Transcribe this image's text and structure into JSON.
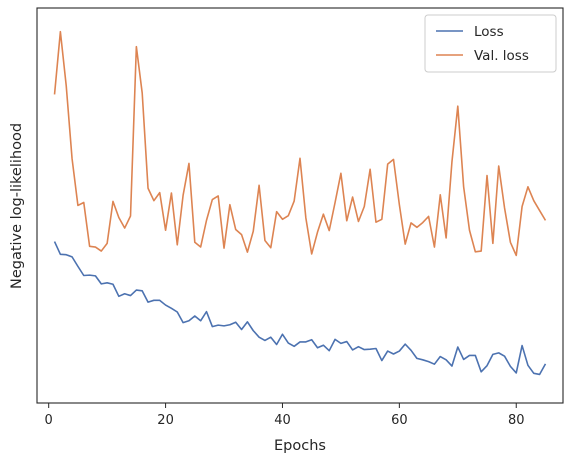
{
  "chart_data": {
    "type": "line",
    "title": "",
    "xlabel": "Epochs",
    "ylabel": "Negative log-likelihood",
    "xlim": [
      -2,
      88
    ],
    "ylim": [
      0,
      1
    ],
    "y_ticks_shown": false,
    "x_ticks": [
      0,
      20,
      40,
      60,
      80
    ],
    "legend": "top-right",
    "grid": false,
    "series": [
      {
        "name": "Loss",
        "color": "#4c72b0",
        "x": [
          1,
          2,
          3,
          4,
          5,
          6,
          7,
          8,
          9,
          10,
          11,
          12,
          13,
          14,
          15,
          16,
          17,
          18,
          19,
          20,
          21,
          22,
          23,
          24,
          25,
          26,
          27,
          28,
          29,
          30,
          31,
          32,
          33,
          34,
          35,
          36,
          37,
          38,
          39,
          40,
          41,
          42,
          43,
          44,
          45,
          46,
          47,
          48,
          49,
          50,
          51,
          52,
          53,
          54,
          55,
          56,
          57,
          58,
          59,
          60,
          61,
          62,
          63,
          64,
          65,
          66,
          67,
          68,
          69,
          70,
          71,
          72,
          73,
          74,
          75,
          76,
          77,
          78,
          79,
          80,
          81,
          82,
          83,
          84,
          85
        ],
        "y": [
          0.393,
          0.358,
          0.357,
          0.351,
          0.325,
          0.3,
          0.301,
          0.299,
          0.277,
          0.28,
          0.276,
          0.243,
          0.25,
          0.245,
          0.26,
          0.258,
          0.227,
          0.232,
          0.232,
          0.219,
          0.21,
          0.2,
          0.171,
          0.176,
          0.189,
          0.176,
          0.201,
          0.16,
          0.164,
          0.162,
          0.165,
          0.172,
          0.152,
          0.173,
          0.149,
          0.131,
          0.122,
          0.131,
          0.111,
          0.139,
          0.115,
          0.106,
          0.118,
          0.118,
          0.124,
          0.102,
          0.109,
          0.094,
          0.125,
          0.114,
          0.119,
          0.096,
          0.105,
          0.097,
          0.098,
          0.1,
          0.067,
          0.093,
          0.085,
          0.093,
          0.112,
          0.095,
          0.073,
          0.069,
          0.064,
          0.057,
          0.078,
          0.069,
          0.052,
          0.104,
          0.07,
          0.081,
          0.081,
          0.036,
          0.053,
          0.084,
          0.088,
          0.079,
          0.051,
          0.033,
          0.108,
          0.054,
          0.032,
          0.029,
          0.058
        ]
      },
      {
        "name": "Val. loss",
        "color": "#dd8452",
        "x": [
          1,
          2,
          3,
          4,
          5,
          6,
          7,
          8,
          9,
          10,
          11,
          12,
          13,
          14,
          15,
          16,
          17,
          18,
          19,
          20,
          21,
          22,
          23,
          24,
          25,
          26,
          27,
          28,
          29,
          30,
          31,
          32,
          33,
          34,
          35,
          36,
          37,
          38,
          39,
          40,
          41,
          42,
          43,
          44,
          45,
          46,
          47,
          48,
          49,
          50,
          51,
          52,
          53,
          54,
          55,
          56,
          57,
          58,
          59,
          60,
          61,
          62,
          63,
          64,
          65,
          66,
          67,
          68,
          69,
          70,
          71,
          72,
          73,
          74,
          75,
          76,
          77,
          78,
          79,
          80,
          81,
          82,
          83,
          84,
          85
        ],
        "y": [
          0.796,
          0.968,
          0.82,
          0.62,
          0.492,
          0.5,
          0.38,
          0.378,
          0.367,
          0.388,
          0.503,
          0.459,
          0.43,
          0.463,
          0.927,
          0.8,
          0.539,
          0.505,
          0.527,
          0.424,
          0.526,
          0.384,
          0.52,
          0.607,
          0.391,
          0.378,
          0.451,
          0.508,
          0.518,
          0.375,
          0.494,
          0.426,
          0.412,
          0.364,
          0.421,
          0.547,
          0.396,
          0.376,
          0.475,
          0.454,
          0.464,
          0.504,
          0.621,
          0.458,
          0.359,
          0.419,
          0.468,
          0.423,
          0.5,
          0.58,
          0.45,
          0.515,
          0.448,
          0.489,
          0.591,
          0.446,
          0.454,
          0.605,
          0.618,
          0.494,
          0.386,
          0.444,
          0.432,
          0.445,
          0.462,
          0.378,
          0.521,
          0.403,
          0.612,
          0.764,
          0.543,
          0.424,
          0.365,
          0.367,
          0.574,
          0.388,
          0.6,
          0.485,
          0.391,
          0.355,
          0.489,
          0.543,
          0.505,
          0.478,
          0.451
        ]
      }
    ]
  }
}
